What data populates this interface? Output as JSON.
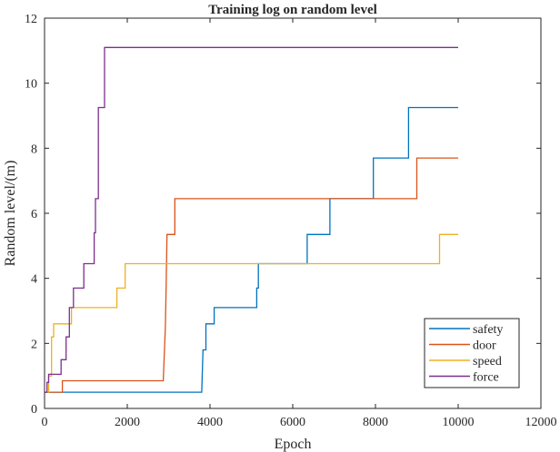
{
  "chart_data": {
    "type": "line",
    "step": true,
    "title": "Training log on random level",
    "xlabel": "Epoch",
    "ylabel": "Random level/(m)",
    "xlim": [
      0,
      12000
    ],
    "ylim": [
      0,
      12
    ],
    "xticks": [
      0,
      2000,
      4000,
      6000,
      8000,
      10000,
      12000
    ],
    "yticks": [
      0,
      2,
      4,
      6,
      8,
      10,
      12
    ],
    "grid": false,
    "legend_position": "lower right",
    "series": [
      {
        "name": "safety",
        "color": "#0072BD",
        "points": [
          [
            0,
            0.5
          ],
          [
            3800,
            0.5
          ],
          [
            3830,
            1.8
          ],
          [
            3900,
            1.8
          ],
          [
            3900,
            2.6
          ],
          [
            4100,
            2.6
          ],
          [
            4100,
            3.1
          ],
          [
            5130,
            3.1
          ],
          [
            5130,
            3.7
          ],
          [
            5170,
            3.7
          ],
          [
            5170,
            4.45
          ],
          [
            6350,
            4.45
          ],
          [
            6350,
            5.35
          ],
          [
            6900,
            5.35
          ],
          [
            6900,
            6.45
          ],
          [
            7950,
            6.45
          ],
          [
            7950,
            7.7
          ],
          [
            8800,
            7.7
          ],
          [
            8800,
            9.25
          ],
          [
            10000,
            9.25
          ]
        ]
      },
      {
        "name": "door",
        "color": "#D95319",
        "points": [
          [
            0,
            0.5
          ],
          [
            430,
            0.5
          ],
          [
            430,
            0.85
          ],
          [
            2870,
            0.85
          ],
          [
            2890,
            1.5
          ],
          [
            2920,
            2.5
          ],
          [
            2940,
            3.8
          ],
          [
            2960,
            5.35
          ],
          [
            3150,
            5.35
          ],
          [
            3150,
            6.45
          ],
          [
            9000,
            6.45
          ],
          [
            9000,
            7.7
          ],
          [
            10000,
            7.7
          ]
        ]
      },
      {
        "name": "speed",
        "color": "#EDB120",
        "points": [
          [
            0,
            0.5
          ],
          [
            100,
            0.5
          ],
          [
            100,
            1.0
          ],
          [
            170,
            1.0
          ],
          [
            170,
            2.2
          ],
          [
            220,
            2.2
          ],
          [
            220,
            2.6
          ],
          [
            650,
            2.6
          ],
          [
            650,
            3.1
          ],
          [
            1750,
            3.1
          ],
          [
            1750,
            3.7
          ],
          [
            1950,
            3.7
          ],
          [
            1950,
            4.45
          ],
          [
            9550,
            4.45
          ],
          [
            9550,
            5.35
          ],
          [
            10000,
            5.35
          ]
        ]
      },
      {
        "name": "force",
        "color": "#7E2F8E",
        "points": [
          [
            0,
            0.5
          ],
          [
            60,
            0.5
          ],
          [
            60,
            0.8
          ],
          [
            100,
            0.8
          ],
          [
            100,
            1.05
          ],
          [
            400,
            1.05
          ],
          [
            400,
            1.5
          ],
          [
            520,
            1.5
          ],
          [
            520,
            2.2
          ],
          [
            600,
            2.2
          ],
          [
            600,
            3.1
          ],
          [
            700,
            3.1
          ],
          [
            700,
            3.7
          ],
          [
            950,
            3.7
          ],
          [
            950,
            4.45
          ],
          [
            1200,
            4.45
          ],
          [
            1200,
            5.4
          ],
          [
            1230,
            5.4
          ],
          [
            1230,
            6.45
          ],
          [
            1300,
            6.45
          ],
          [
            1300,
            9.25
          ],
          [
            1450,
            9.25
          ],
          [
            1450,
            11.1
          ],
          [
            10000,
            11.1
          ]
        ]
      }
    ]
  }
}
